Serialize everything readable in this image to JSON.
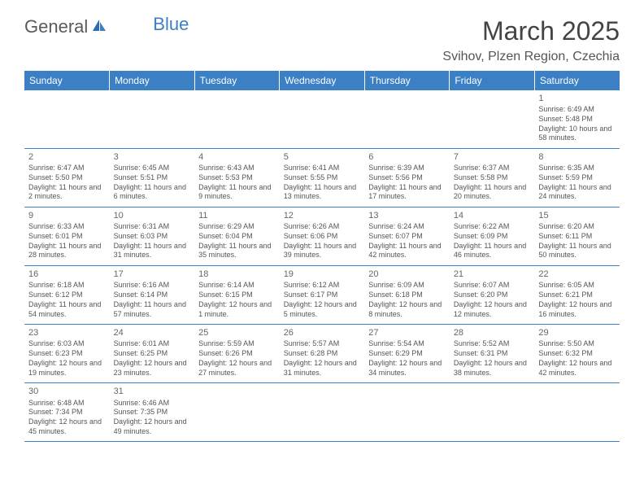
{
  "logo": {
    "text1": "General",
    "text2": "Blue"
  },
  "title": "March 2025",
  "location": "Svihov, Plzen Region, Czechia",
  "colors": {
    "header_bg": "#3b7fc4",
    "header_text": "#ffffff",
    "border": "#3b7fc4",
    "text": "#555555",
    "logo_blue": "#3b7fc4"
  },
  "weekdays": [
    "Sunday",
    "Monday",
    "Tuesday",
    "Wednesday",
    "Thursday",
    "Friday",
    "Saturday"
  ],
  "weeks": [
    [
      null,
      null,
      null,
      null,
      null,
      null,
      {
        "d": "1",
        "sr": "6:49 AM",
        "ss": "5:48 PM",
        "dl": "10 hours and 58 minutes."
      }
    ],
    [
      {
        "d": "2",
        "sr": "6:47 AM",
        "ss": "5:50 PM",
        "dl": "11 hours and 2 minutes."
      },
      {
        "d": "3",
        "sr": "6:45 AM",
        "ss": "5:51 PM",
        "dl": "11 hours and 6 minutes."
      },
      {
        "d": "4",
        "sr": "6:43 AM",
        "ss": "5:53 PM",
        "dl": "11 hours and 9 minutes."
      },
      {
        "d": "5",
        "sr": "6:41 AM",
        "ss": "5:55 PM",
        "dl": "11 hours and 13 minutes."
      },
      {
        "d": "6",
        "sr": "6:39 AM",
        "ss": "5:56 PM",
        "dl": "11 hours and 17 minutes."
      },
      {
        "d": "7",
        "sr": "6:37 AM",
        "ss": "5:58 PM",
        "dl": "11 hours and 20 minutes."
      },
      {
        "d": "8",
        "sr": "6:35 AM",
        "ss": "5:59 PM",
        "dl": "11 hours and 24 minutes."
      }
    ],
    [
      {
        "d": "9",
        "sr": "6:33 AM",
        "ss": "6:01 PM",
        "dl": "11 hours and 28 minutes."
      },
      {
        "d": "10",
        "sr": "6:31 AM",
        "ss": "6:03 PM",
        "dl": "11 hours and 31 minutes."
      },
      {
        "d": "11",
        "sr": "6:29 AM",
        "ss": "6:04 PM",
        "dl": "11 hours and 35 minutes."
      },
      {
        "d": "12",
        "sr": "6:26 AM",
        "ss": "6:06 PM",
        "dl": "11 hours and 39 minutes."
      },
      {
        "d": "13",
        "sr": "6:24 AM",
        "ss": "6:07 PM",
        "dl": "11 hours and 42 minutes."
      },
      {
        "d": "14",
        "sr": "6:22 AM",
        "ss": "6:09 PM",
        "dl": "11 hours and 46 minutes."
      },
      {
        "d": "15",
        "sr": "6:20 AM",
        "ss": "6:11 PM",
        "dl": "11 hours and 50 minutes."
      }
    ],
    [
      {
        "d": "16",
        "sr": "6:18 AM",
        "ss": "6:12 PM",
        "dl": "11 hours and 54 minutes."
      },
      {
        "d": "17",
        "sr": "6:16 AM",
        "ss": "6:14 PM",
        "dl": "11 hours and 57 minutes."
      },
      {
        "d": "18",
        "sr": "6:14 AM",
        "ss": "6:15 PM",
        "dl": "12 hours and 1 minute."
      },
      {
        "d": "19",
        "sr": "6:12 AM",
        "ss": "6:17 PM",
        "dl": "12 hours and 5 minutes."
      },
      {
        "d": "20",
        "sr": "6:09 AM",
        "ss": "6:18 PM",
        "dl": "12 hours and 8 minutes."
      },
      {
        "d": "21",
        "sr": "6:07 AM",
        "ss": "6:20 PM",
        "dl": "12 hours and 12 minutes."
      },
      {
        "d": "22",
        "sr": "6:05 AM",
        "ss": "6:21 PM",
        "dl": "12 hours and 16 minutes."
      }
    ],
    [
      {
        "d": "23",
        "sr": "6:03 AM",
        "ss": "6:23 PM",
        "dl": "12 hours and 19 minutes."
      },
      {
        "d": "24",
        "sr": "6:01 AM",
        "ss": "6:25 PM",
        "dl": "12 hours and 23 minutes."
      },
      {
        "d": "25",
        "sr": "5:59 AM",
        "ss": "6:26 PM",
        "dl": "12 hours and 27 minutes."
      },
      {
        "d": "26",
        "sr": "5:57 AM",
        "ss": "6:28 PM",
        "dl": "12 hours and 31 minutes."
      },
      {
        "d": "27",
        "sr": "5:54 AM",
        "ss": "6:29 PM",
        "dl": "12 hours and 34 minutes."
      },
      {
        "d": "28",
        "sr": "5:52 AM",
        "ss": "6:31 PM",
        "dl": "12 hours and 38 minutes."
      },
      {
        "d": "29",
        "sr": "5:50 AM",
        "ss": "6:32 PM",
        "dl": "12 hours and 42 minutes."
      }
    ],
    [
      {
        "d": "30",
        "sr": "6:48 AM",
        "ss": "7:34 PM",
        "dl": "12 hours and 45 minutes."
      },
      {
        "d": "31",
        "sr": "6:46 AM",
        "ss": "7:35 PM",
        "dl": "12 hours and 49 minutes."
      },
      null,
      null,
      null,
      null,
      null
    ]
  ],
  "labels": {
    "sunrise": "Sunrise:",
    "sunset": "Sunset:",
    "daylight": "Daylight:"
  }
}
